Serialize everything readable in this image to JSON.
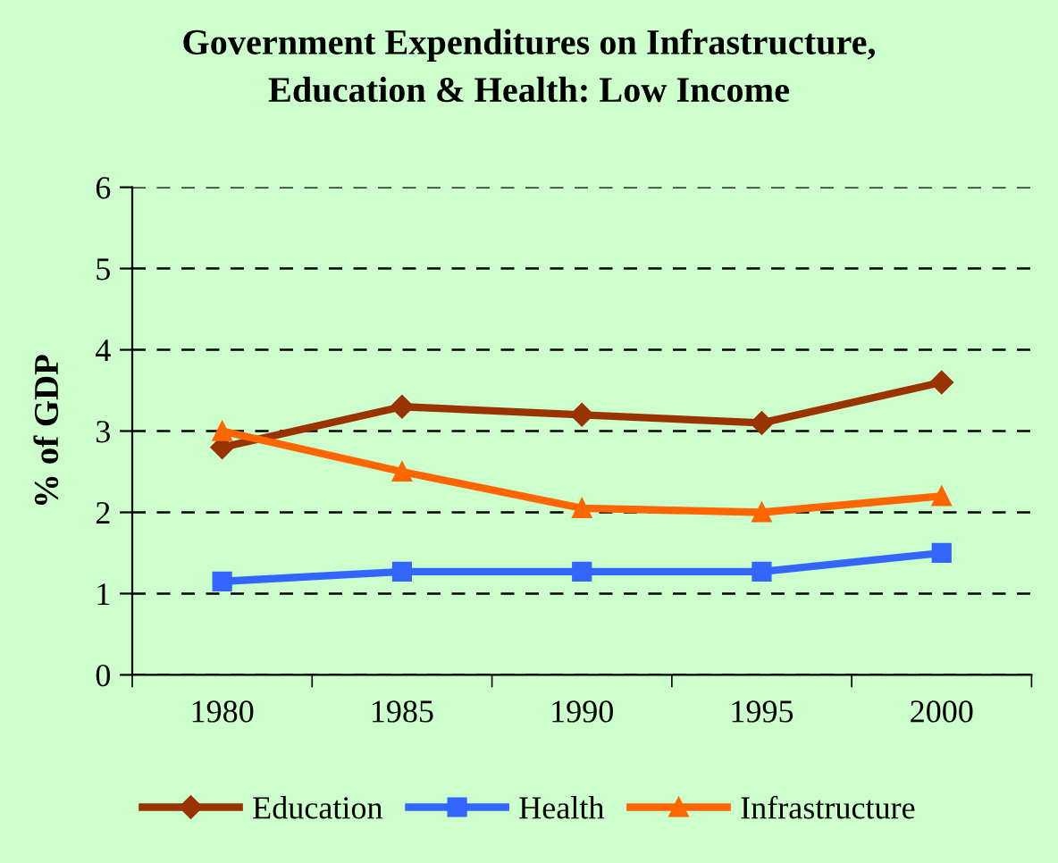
{
  "chart_data": {
    "type": "line",
    "title": "Government Expenditures on Infrastructure,\nEducation & Health: Low Income",
    "ylabel": "% of GDP",
    "categories": [
      "1980",
      "1985",
      "1990",
      "1995",
      "2000"
    ],
    "series": [
      {
        "name": "Education",
        "color": "#993300",
        "marker": "diamond",
        "values": [
          2.8,
          3.3,
          3.2,
          3.1,
          3.6
        ]
      },
      {
        "name": "Health",
        "color": "#3366ff",
        "marker": "square",
        "values": [
          1.15,
          1.27,
          1.27,
          1.27,
          1.5
        ]
      },
      {
        "name": "Infrastructure",
        "color": "#ff6600",
        "marker": "triangle",
        "values": [
          3.0,
          2.5,
          2.05,
          2.0,
          2.2
        ]
      }
    ],
    "ylim": [
      0,
      6
    ],
    "yticks": [
      0,
      1,
      2,
      3,
      4,
      5,
      6
    ],
    "grid": "y",
    "legend": "bottom",
    "line_style": "solid"
  }
}
